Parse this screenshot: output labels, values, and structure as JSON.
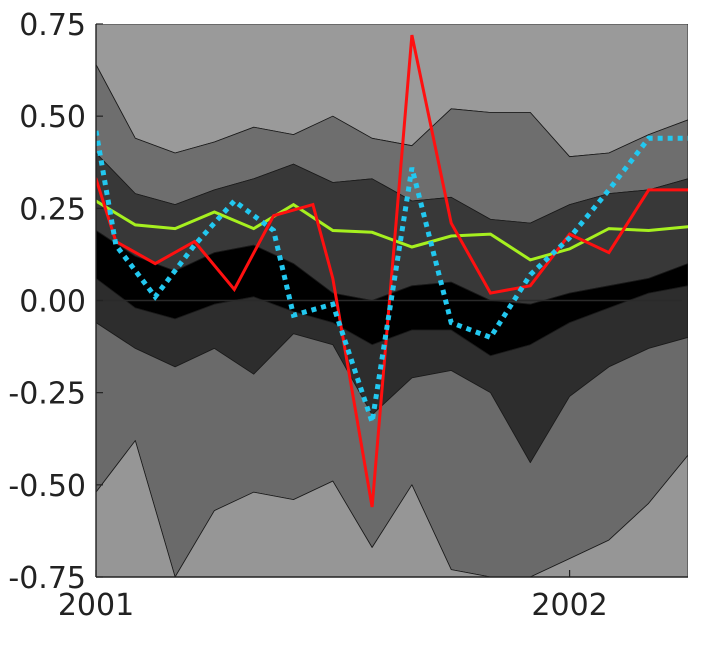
{
  "chart_data": {
    "type": "line",
    "title": "",
    "xlabel": "",
    "ylabel": "",
    "xlim": [
      2001.0,
      2002.25
    ],
    "ylim": [
      -0.75,
      0.75
    ],
    "x_tick_values": [
      2001,
      2002
    ],
    "x_tick_labels": [
      "2001",
      "2002"
    ],
    "y_tick_values": [
      0.75,
      0.5,
      0.25,
      0.0,
      -0.25,
      -0.5,
      -0.75
    ],
    "y_tick_labels": [
      "0.75",
      "0.50",
      "0.25",
      "0.00",
      "-0.25",
      "-0.50",
      "-0.75"
    ],
    "x": [
      2001.0,
      2001.083,
      2001.167,
      2001.25,
      2001.333,
      2001.417,
      2001.5,
      2001.583,
      2001.667,
      2001.75,
      2001.833,
      2001.917,
      2002.0,
      2002.083,
      2002.167,
      2002.25
    ],
    "fan_bands": [
      {
        "name": "band-outer-upper",
        "color": "#9a9a9a",
        "lower": [
          0.64,
          0.44,
          0.4,
          0.43,
          0.47,
          0.45,
          0.5,
          0.44,
          0.42,
          0.52,
          0.51,
          0.51,
          0.39,
          0.4,
          0.45,
          0.49
        ],
        "upper": [
          0.75,
          0.75,
          0.75,
          0.75,
          0.75,
          0.75,
          0.75,
          0.75,
          0.75,
          0.75,
          0.75,
          0.75,
          0.75,
          0.75,
          0.75,
          0.75
        ]
      },
      {
        "name": "band-middle-upper",
        "color": "#6e6e6e",
        "lower": [
          0.4,
          0.29,
          0.26,
          0.3,
          0.33,
          0.37,
          0.32,
          0.33,
          0.27,
          0.28,
          0.22,
          0.21,
          0.26,
          0.29,
          0.3,
          0.33
        ],
        "upper": [
          0.64,
          0.44,
          0.4,
          0.43,
          0.47,
          0.45,
          0.5,
          0.44,
          0.42,
          0.52,
          0.51,
          0.51,
          0.39,
          0.4,
          0.45,
          0.49
        ]
      },
      {
        "name": "band-inner-upper",
        "color": "#383838",
        "lower": [
          0.19,
          0.12,
          0.08,
          0.13,
          0.15,
          0.1,
          0.02,
          0.0,
          0.04,
          0.05,
          0.0,
          -0.01,
          0.02,
          0.04,
          0.06,
          0.1
        ],
        "upper": [
          0.4,
          0.29,
          0.26,
          0.3,
          0.33,
          0.37,
          0.32,
          0.33,
          0.27,
          0.28,
          0.22,
          0.21,
          0.26,
          0.29,
          0.3,
          0.33
        ]
      },
      {
        "name": "band-core",
        "color": "#000000",
        "lower": [
          0.06,
          -0.02,
          -0.05,
          -0.01,
          0.01,
          -0.03,
          -0.06,
          -0.12,
          -0.08,
          -0.08,
          -0.15,
          -0.12,
          -0.06,
          -0.02,
          0.02,
          0.04
        ],
        "upper": [
          0.19,
          0.12,
          0.08,
          0.13,
          0.15,
          0.1,
          0.02,
          0.0,
          0.04,
          0.05,
          0.0,
          -0.01,
          0.02,
          0.04,
          0.06,
          0.1
        ]
      },
      {
        "name": "band-inner-lower",
        "color": "#2d2d2d",
        "lower": [
          -0.06,
          -0.13,
          -0.18,
          -0.13,
          -0.2,
          -0.09,
          -0.12,
          -0.31,
          -0.21,
          -0.19,
          -0.25,
          -0.44,
          -0.26,
          -0.18,
          -0.13,
          -0.1
        ],
        "upper": [
          0.06,
          -0.02,
          -0.05,
          -0.01,
          0.01,
          -0.03,
          -0.06,
          -0.12,
          -0.08,
          -0.08,
          -0.15,
          -0.12,
          -0.06,
          -0.02,
          0.02,
          0.04
        ]
      },
      {
        "name": "band-middle-lower",
        "color": "#6a6a6a",
        "lower": [
          -0.52,
          -0.38,
          -0.75,
          -0.57,
          -0.52,
          -0.54,
          -0.49,
          -0.67,
          -0.5,
          -0.73,
          -0.75,
          -0.75,
          -0.7,
          -0.65,
          -0.55,
          -0.42
        ],
        "upper": [
          -0.06,
          -0.13,
          -0.18,
          -0.13,
          -0.2,
          -0.09,
          -0.12,
          -0.31,
          -0.21,
          -0.19,
          -0.25,
          -0.44,
          -0.26,
          -0.18,
          -0.13,
          -0.1
        ]
      },
      {
        "name": "band-outer-lower",
        "color": "#969696",
        "lower": [
          -0.75,
          -0.75,
          -0.75,
          -0.75,
          -0.75,
          -0.75,
          -0.75,
          -0.75,
          -0.75,
          -0.75,
          -0.75,
          -0.75,
          -0.75,
          -0.75,
          -0.75,
          -0.75
        ],
        "upper": [
          -0.52,
          -0.38,
          -0.75,
          -0.57,
          -0.52,
          -0.54,
          -0.49,
          -0.67,
          -0.5,
          -0.73,
          -0.75,
          -0.75,
          -0.7,
          -0.65,
          -0.55,
          -0.42
        ]
      }
    ],
    "series": [
      {
        "name": "green-series",
        "color": "#a6f01f",
        "style": "solid",
        "x": [
          2001.0,
          2001.083,
          2001.167,
          2001.25,
          2001.333,
          2001.417,
          2001.5,
          2001.583,
          2001.667,
          2001.75,
          2001.833,
          2001.917,
          2002.0,
          2002.083,
          2002.167,
          2002.25
        ],
        "values": [
          0.27,
          0.205,
          0.195,
          0.24,
          0.195,
          0.26,
          0.19,
          0.185,
          0.145,
          0.175,
          0.18,
          0.11,
          0.14,
          0.195,
          0.19,
          0.2
        ]
      },
      {
        "name": "red-series",
        "color": "#ff1010",
        "style": "solid",
        "x": [
          2001.0,
          2001.042,
          2001.125,
          2001.208,
          2001.292,
          2001.375,
          2001.458,
          2001.5,
          2001.583,
          2001.667,
          2001.75,
          2001.833,
          2001.917,
          2002.0,
          2002.083,
          2002.167,
          2002.25
        ],
        "values": [
          0.33,
          0.16,
          0.1,
          0.16,
          0.03,
          0.23,
          0.26,
          0.06,
          -0.56,
          0.72,
          0.21,
          0.02,
          0.04,
          0.18,
          0.13,
          0.3,
          0.3
        ]
      },
      {
        "name": "cyan-series",
        "color": "#22c8f0",
        "style": "dotted",
        "x": [
          2001.0,
          2001.042,
          2001.125,
          2001.208,
          2001.292,
          2001.375,
          2001.417,
          2001.5,
          2001.583,
          2001.667,
          2001.75,
          2001.833,
          2001.917,
          2002.0,
          2002.083,
          2002.167,
          2002.25
        ],
        "values": [
          0.46,
          0.15,
          0.01,
          0.15,
          0.27,
          0.19,
          -0.04,
          -0.01,
          -0.33,
          0.36,
          -0.06,
          -0.1,
          0.07,
          0.17,
          0.3,
          0.44,
          0.44
        ]
      }
    ],
    "zero_line": 0.0
  }
}
